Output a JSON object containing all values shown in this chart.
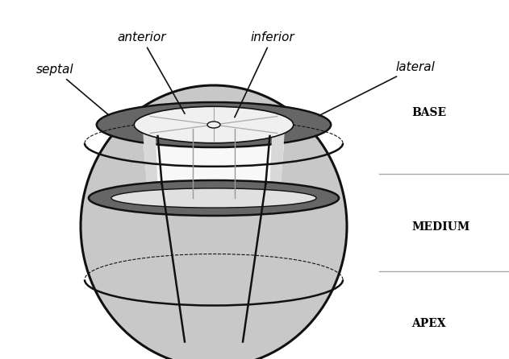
{
  "bg_color": "#ffffff",
  "body_color_light": "#c8c8c8",
  "body_color_dark": "#888888",
  "ring_color_dark": "#666666",
  "inner_white": "#f0f0f0",
  "inner_light": "#e0e0e0",
  "line_color": "#111111",
  "sep_line_color": "#999999",
  "label_septal": "septal",
  "label_anterior": "anterior",
  "label_inferior": "inferior",
  "label_lateral": "lateral",
  "label_base": "BASE",
  "label_medium": "MEDIUM",
  "label_apex": "APEX",
  "figsize": [
    6.31,
    4.46
  ],
  "dpi": 100
}
